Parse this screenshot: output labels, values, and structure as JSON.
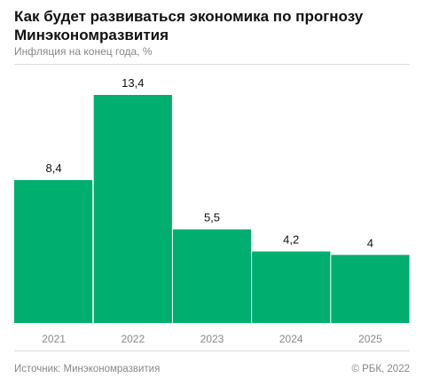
{
  "header": {
    "title": "Как будет развиваться экономика по прогнозу Минэкономразвития",
    "subtitle": "Инфляция на конец года, %"
  },
  "footer": {
    "source": "Источник: Минэкономразвития",
    "copyright": "© РБК, 2022"
  },
  "colors": {
    "bar": "#00AE6F",
    "text": "#111111",
    "muted": "#888888"
  },
  "chart_data": {
    "type": "bar",
    "title": "Как будет развиваться экономика по прогнозу Минэкономразвития",
    "ylabel": "Инфляция на конец года, %",
    "categories": [
      "2021",
      "2022",
      "2023",
      "2024",
      "2025"
    ],
    "values": [
      8.4,
      13.4,
      5.5,
      4.2,
      4
    ],
    "value_labels": [
      "8,4",
      "13,4",
      "5,5",
      "4,2",
      "4"
    ],
    "ylim": [
      0,
      13.4
    ],
    "grid": false,
    "legend": "none"
  }
}
